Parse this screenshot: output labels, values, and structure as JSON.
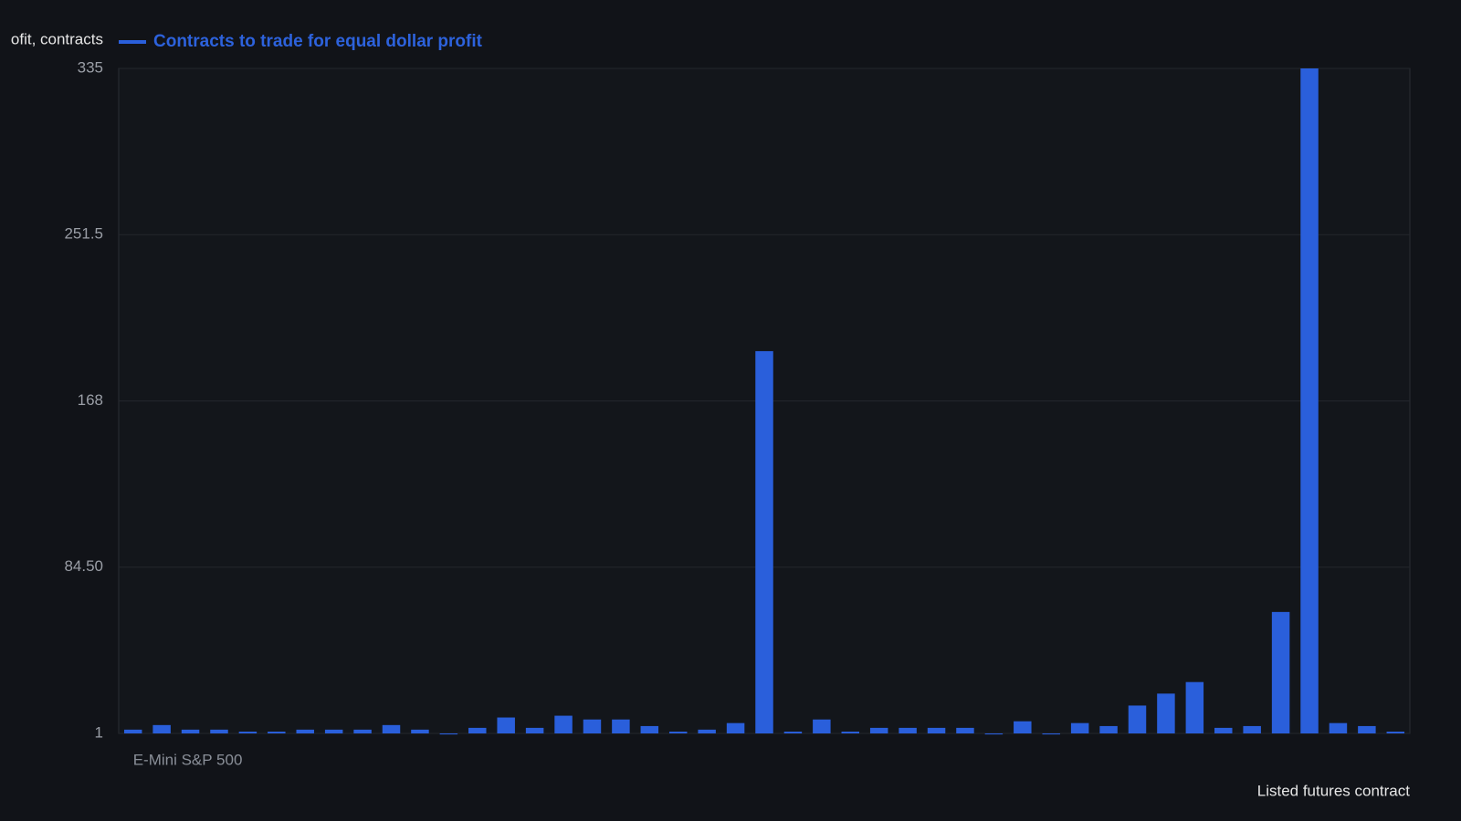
{
  "chart_data": {
    "type": "bar",
    "y_label": "ofit, contracts",
    "x_label": "Listed futures contract",
    "categories": [
      "E-Mini S&P 500",
      null,
      null,
      null,
      null,
      null,
      null,
      null,
      null,
      null,
      null,
      null,
      null,
      null,
      null,
      null,
      null,
      null,
      null,
      null,
      null,
      null,
      null,
      null,
      null,
      null,
      null,
      null,
      null,
      null,
      null,
      null,
      null,
      null,
      null,
      null,
      null,
      null,
      null,
      null,
      null,
      null,
      null,
      null,
      null
    ],
    "series": [
      {
        "name": "Contracts to trade for equal dollar profit",
        "color": "#2a5fdb",
        "values": [
          2.9,
          5.2,
          2.9,
          2.9,
          1.9,
          1.9,
          2.9,
          2.9,
          2.9,
          5.2,
          2.9,
          0.5,
          3.8,
          9,
          3.8,
          9.9,
          8,
          8,
          4.7,
          1.9,
          2.9,
          6.2,
          193,
          1.9,
          8,
          1.9,
          3.8,
          3.8,
          3.8,
          3.8,
          0.5,
          7.1,
          0.5,
          6.2,
          4.7,
          15,
          21,
          26.8,
          3.8,
          4.7,
          62,
          335,
          6.2,
          4.7,
          1.9
        ]
      }
    ],
    "ylim": [
      1,
      335
    ],
    "yticks": [
      1,
      {
        "value": 84.5,
        "label": "84.50"
      },
      168,
      251.5,
      335
    ],
    "grid": true
  }
}
